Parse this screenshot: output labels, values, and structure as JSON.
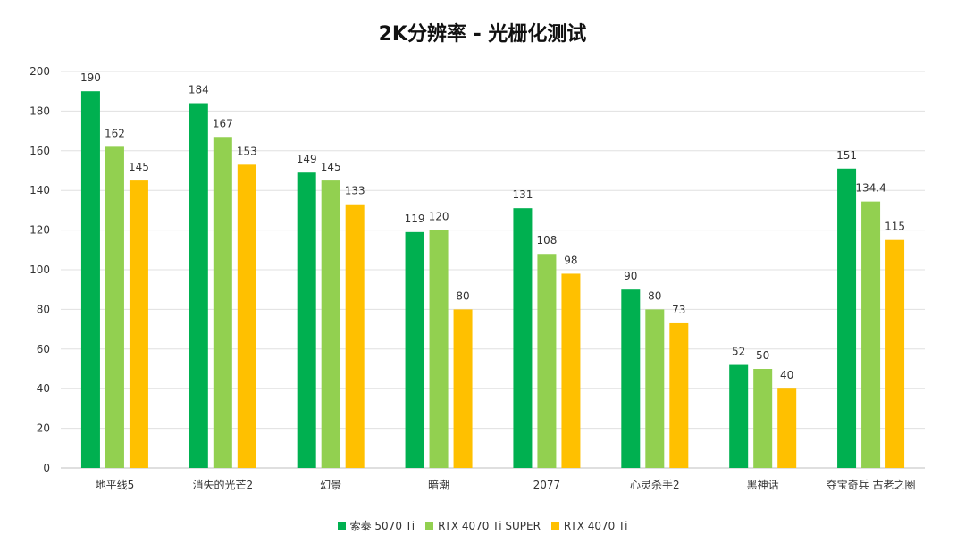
{
  "chart_data": {
    "type": "bar",
    "title": "2K分辨率 - 光栅化测试",
    "xlabel": "",
    "ylabel": "",
    "ylim": [
      0,
      200
    ],
    "yticks": [
      0,
      20,
      40,
      60,
      80,
      100,
      120,
      140,
      160,
      180,
      200
    ],
    "grid": true,
    "legend_position": "bottom",
    "categories": [
      "地平线5",
      "消失的光芒2",
      "幻景",
      "暗潮",
      "2077",
      "心灵杀手2",
      "黑神话",
      "夺宝奇兵 古老之圈"
    ],
    "series": [
      {
        "name": "索泰 5070 Ti",
        "color": "#00b050",
        "values": [
          190,
          184,
          149,
          119,
          131,
          90,
          52,
          151
        ],
        "labels": [
          "190",
          "184",
          "149",
          "119",
          "131",
          "90",
          "52",
          "151"
        ]
      },
      {
        "name": "RTX 4070 Ti SUPER",
        "color": "#92d050",
        "values": [
          162,
          167,
          145,
          120,
          108,
          80,
          50,
          134.4
        ],
        "labels": [
          "162",
          "167",
          "145",
          "120",
          "108",
          "80",
          "50",
          "134.4"
        ]
      },
      {
        "name": "RTX 4070 Ti",
        "color": "#ffc000",
        "values": [
          145,
          153,
          133,
          80,
          98,
          73,
          40,
          115
        ],
        "labels": [
          "145",
          "153",
          "133",
          "80",
          "98",
          "73",
          "40",
          "115"
        ]
      }
    ]
  }
}
